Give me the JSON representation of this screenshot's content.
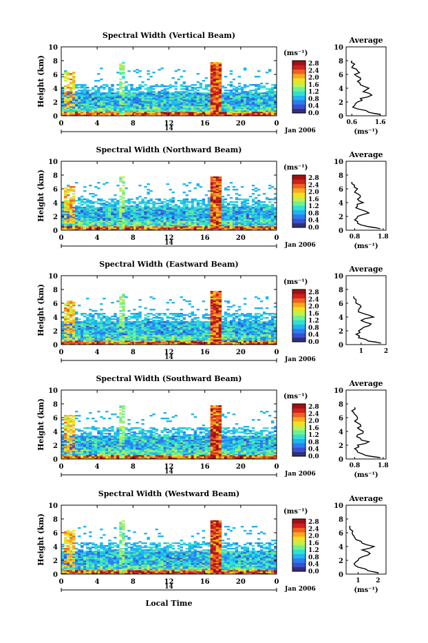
{
  "figure": {
    "x_axis_label": "Local Time",
    "date_label": "Jan 2006",
    "day_label": "14",
    "avg_title": "Average",
    "cb_unit": "(ms⁻¹)",
    "height_label": "Height (km)"
  },
  "colorbar": {
    "ticks": [
      "2.8",
      "2.4",
      "2.0",
      "1.6",
      "1.2",
      "0.8",
      "0.4",
      "0.0"
    ],
    "colors": [
      "#30307a",
      "#3a4fd0",
      "#2a7ff0",
      "#20b4f0",
      "#30e0d0",
      "#70f090",
      "#c0f050",
      "#f0e020",
      "#f8a820",
      "#f06020",
      "#d02020",
      "#a01010"
    ]
  },
  "chart_data": [
    {
      "type": "heatmap",
      "title": "Spectral Width (Vertical Beam)",
      "xlabel": "Local Time",
      "ylabel": "Height (km)",
      "xlim": [
        0,
        24
      ],
      "ylim": [
        0,
        10
      ],
      "x_ticks": [
        "0",
        "4",
        "8",
        "12",
        "16",
        "20",
        "0"
      ],
      "y_ticks": [
        "0",
        "2",
        "4",
        "6",
        "8",
        "10"
      ],
      "z_unit": "(ms⁻¹)",
      "z_range": [
        0.0,
        2.8
      ],
      "average_profile": {
        "title": "Average",
        "xlabel": "(ms⁻¹)",
        "x_ticks": [
          "0.6",
          "1.6"
        ],
        "xlim": [
          0.4,
          1.8
        ],
        "y_ticks": [
          "0",
          "2",
          "4",
          "6",
          "8",
          "10"
        ],
        "ylim": [
          0,
          10
        ],
        "height_km": [
          0.2,
          0.5,
          1.0,
          1.5,
          2.0,
          2.5,
          3.0,
          3.5,
          4.0,
          4.5,
          5.0,
          5.5,
          6.0,
          6.5,
          7.0,
          7.5,
          8.0
        ],
        "width_ms": [
          1.6,
          1.2,
          0.8,
          0.7,
          0.8,
          0.9,
          1.3,
          1.0,
          1.2,
          0.9,
          0.8,
          0.9,
          0.7,
          0.8,
          0.6,
          0.7,
          0.6
        ]
      }
    },
    {
      "type": "heatmap",
      "title": "Spectral Width (Northward Beam)",
      "xlabel": "Local Time",
      "ylabel": "Height (km)",
      "xlim": [
        0,
        24
      ],
      "ylim": [
        0,
        10
      ],
      "x_ticks": [
        "0",
        "4",
        "8",
        "12",
        "16",
        "20",
        "0"
      ],
      "y_ticks": [
        "0",
        "2",
        "4",
        "6",
        "8",
        "10"
      ],
      "z_unit": "(ms⁻¹)",
      "z_range": [
        0.0,
        2.8
      ],
      "average_profile": {
        "title": "Average",
        "xlabel": "(ms⁻¹)",
        "x_ticks": [
          "0.8",
          "1.8"
        ],
        "xlim": [
          0.5,
          1.9
        ],
        "y_ticks": [
          "0",
          "2",
          "4",
          "6",
          "8",
          "10"
        ],
        "ylim": [
          0,
          10
        ],
        "height_km": [
          0.2,
          0.5,
          1.0,
          1.5,
          2.0,
          2.5,
          3.0,
          3.5,
          4.0,
          4.5,
          5.0,
          5.5,
          6.0,
          6.5,
          7.0
        ],
        "width_ms": [
          1.7,
          1.3,
          0.9,
          0.8,
          0.9,
          1.3,
          1.0,
          0.9,
          1.1,
          0.9,
          1.0,
          0.8,
          0.9,
          0.8,
          0.7
        ]
      }
    },
    {
      "type": "heatmap",
      "title": "Spectral Width (Eastward Beam)",
      "xlabel": "Local Time",
      "ylabel": "Height (km)",
      "xlim": [
        0,
        24
      ],
      "ylim": [
        0,
        10
      ],
      "x_ticks": [
        "0",
        "4",
        "8",
        "12",
        "16",
        "20",
        "0"
      ],
      "y_ticks": [
        "0",
        "2",
        "4",
        "6",
        "8",
        "10"
      ],
      "z_unit": "(ms⁻¹)",
      "z_range": [
        0.0,
        2.8
      ],
      "average_profile": {
        "title": "Average",
        "xlabel": "",
        "x_ticks": [
          "1",
          "2"
        ],
        "xlim": [
          0.4,
          2.0
        ],
        "y_ticks": [
          "0",
          "2",
          "4",
          "6",
          "8",
          "10"
        ],
        "ylim": [
          0,
          10
        ],
        "height_km": [
          0.2,
          0.5,
          1.0,
          1.5,
          2.0,
          2.5,
          3.0,
          3.5,
          4.0,
          4.5,
          5.0,
          5.5,
          6.0,
          6.5,
          7.0
        ],
        "width_ms": [
          1.8,
          1.3,
          0.9,
          0.8,
          0.9,
          1.1,
          1.4,
          1.0,
          1.5,
          1.1,
          0.9,
          1.0,
          0.8,
          0.8,
          0.7
        ]
      }
    },
    {
      "type": "heatmap",
      "title": "Spectral Width (Southward Beam)",
      "xlabel": "Local Time",
      "ylabel": "Height (km)",
      "xlim": [
        0,
        24
      ],
      "ylim": [
        0,
        10
      ],
      "x_ticks": [
        "0",
        "4",
        "8",
        "12",
        "16",
        "20",
        "0"
      ],
      "y_ticks": [
        "0",
        "2",
        "4",
        "6",
        "8",
        "10"
      ],
      "z_unit": "(ms⁻¹)",
      "z_range": [
        0.0,
        2.8
      ],
      "average_profile": {
        "title": "Average",
        "xlabel": "(ms⁻¹)",
        "x_ticks": [
          "0.8",
          "1.8"
        ],
        "xlim": [
          0.5,
          1.9
        ],
        "y_ticks": [
          "0",
          "2",
          "4",
          "6",
          "8",
          "10"
        ],
        "ylim": [
          0,
          10
        ],
        "height_km": [
          0.2,
          0.5,
          1.0,
          1.5,
          2.0,
          2.5,
          3.0,
          3.5,
          4.0,
          4.5,
          5.0,
          5.5,
          6.0,
          6.5,
          7.0,
          7.5
        ],
        "width_ms": [
          1.7,
          1.2,
          0.9,
          0.8,
          0.9,
          1.3,
          1.0,
          0.9,
          1.1,
          0.9,
          1.0,
          0.8,
          0.9,
          0.8,
          0.7,
          0.8
        ]
      }
    },
    {
      "type": "heatmap",
      "title": "Spectral Width (Westward Beam)",
      "xlabel": "Local Time",
      "ylabel": "Height (km)",
      "xlim": [
        0,
        24
      ],
      "ylim": [
        0,
        10
      ],
      "x_ticks": [
        "0",
        "4",
        "8",
        "12",
        "16",
        "20",
        "0"
      ],
      "y_ticks": [
        "0",
        "2",
        "4",
        "6",
        "8",
        "10"
      ],
      "z_unit": "(ms⁻¹)",
      "z_range": [
        0.0,
        2.8
      ],
      "average_profile": {
        "title": "Average",
        "xlabel": "(ms⁻¹)",
        "x_ticks": [
          "1",
          "2"
        ],
        "xlim": [
          0.4,
          2.4
        ],
        "y_ticks": [
          "0",
          "2",
          "4",
          "6",
          "8",
          "10"
        ],
        "ylim": [
          0,
          10
        ],
        "height_km": [
          0.2,
          0.5,
          1.0,
          1.5,
          2.0,
          2.5,
          3.0,
          3.5,
          4.0,
          4.5,
          5.0,
          5.5,
          6.0,
          6.5,
          7.0
        ],
        "width_ms": [
          2.0,
          1.5,
          1.0,
          0.8,
          1.0,
          1.2,
          1.6,
          1.2,
          1.8,
          1.2,
          0.9,
          0.8,
          0.7,
          0.6,
          0.6
        ]
      }
    }
  ]
}
